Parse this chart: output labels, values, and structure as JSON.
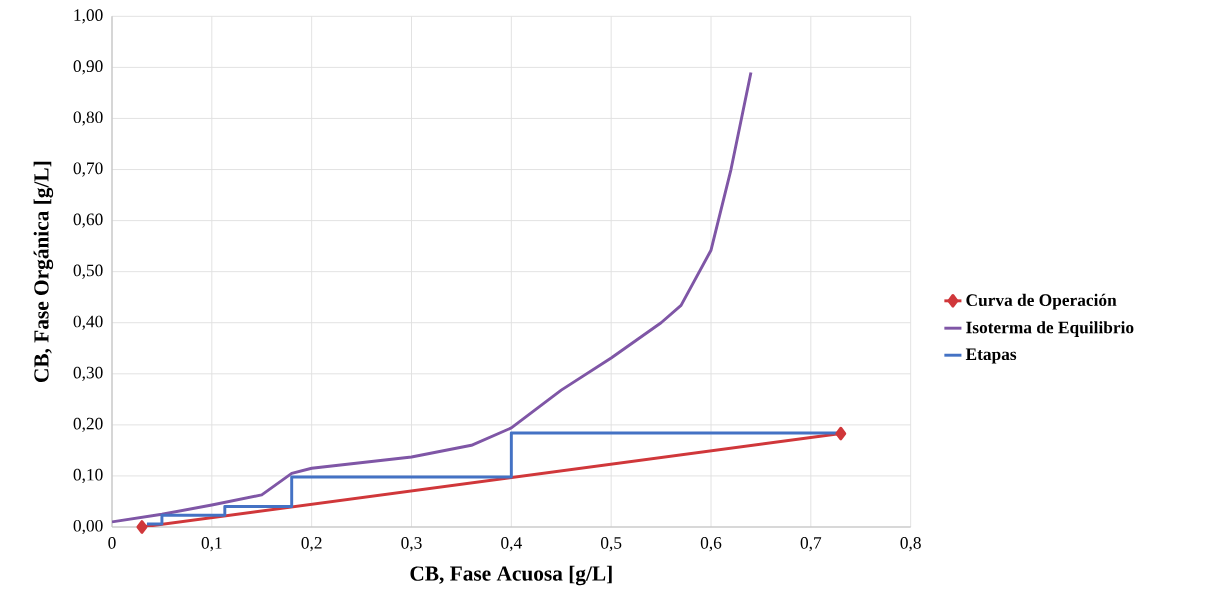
{
  "chart_data": {
    "type": "line",
    "xlabel": "CB, Fase Acuosa [g/L]",
    "ylabel": "CB, Fase Orgánica [g/L]",
    "xlim": [
      0,
      0.8
    ],
    "xticks": [
      0,
      {
        "value": 0.1,
        "label": "0,1"
      },
      {
        "value": 0.2,
        "label": "0,2"
      },
      {
        "value": 0.3,
        "label": "0,3"
      },
      {
        "value": 0.4,
        "label": "0,4"
      },
      {
        "value": 0.5,
        "label": "0,5"
      },
      {
        "value": 0.6,
        "label": "0,6"
      },
      {
        "value": 0.7,
        "label": "0,7"
      },
      {
        "value": 0.8,
        "label": "0,8"
      }
    ],
    "ylim": [
      0,
      1
    ],
    "yticks": [
      {
        "value": 0,
        "label": "0,00"
      },
      {
        "value": 0.1,
        "label": "0,10"
      },
      {
        "value": 0.2,
        "label": "0,20"
      },
      {
        "value": 0.3,
        "label": "0,30"
      },
      {
        "value": 0.4,
        "label": "0,40"
      },
      {
        "value": 0.5,
        "label": "0,50"
      },
      {
        "value": 0.6,
        "label": "0,60"
      },
      {
        "value": 0.7,
        "label": "0,70"
      },
      {
        "value": 0.8,
        "label": "0,80"
      },
      {
        "value": 0.9,
        "label": "0,90"
      },
      {
        "value": 1,
        "label": "1,00"
      }
    ],
    "grid": true,
    "legend": "right",
    "series": [
      {
        "name": "Curva de Operación",
        "color": "#d0373a",
        "marker": "diamond",
        "x": [
          0.03,
          0.73
        ],
        "values": [
          0,
          0.183
        ]
      },
      {
        "name": "Isoterma de Equilibrio",
        "color": "#7f56a6",
        "marker": "none",
        "x": [
          0,
          0.05,
          0.1,
          0.15,
          0.18,
          0.2,
          0.3,
          0.36,
          0.4,
          0.45,
          0.5,
          0.55,
          0.57,
          0.6,
          0.62,
          0.64
        ],
        "values": [
          0.01,
          0.025,
          0.043,
          0.063,
          0.105,
          0.115,
          0.137,
          0.16,
          0.194,
          0.268,
          0.331,
          0.4,
          0.434,
          0.542,
          0.7,
          0.89
        ]
      },
      {
        "name": "Etapas",
        "color": "#4472c4",
        "marker": "none",
        "x": [
          0.73,
          0.4,
          0.4,
          0.18,
          0.18,
          0.113,
          0.113,
          0.05,
          0.05,
          0.035
        ],
        "values": [
          0.184,
          0.184,
          0.098,
          0.098,
          0.04,
          0.04,
          0.023,
          0.023,
          0.006,
          0.006
        ]
      }
    ]
  }
}
